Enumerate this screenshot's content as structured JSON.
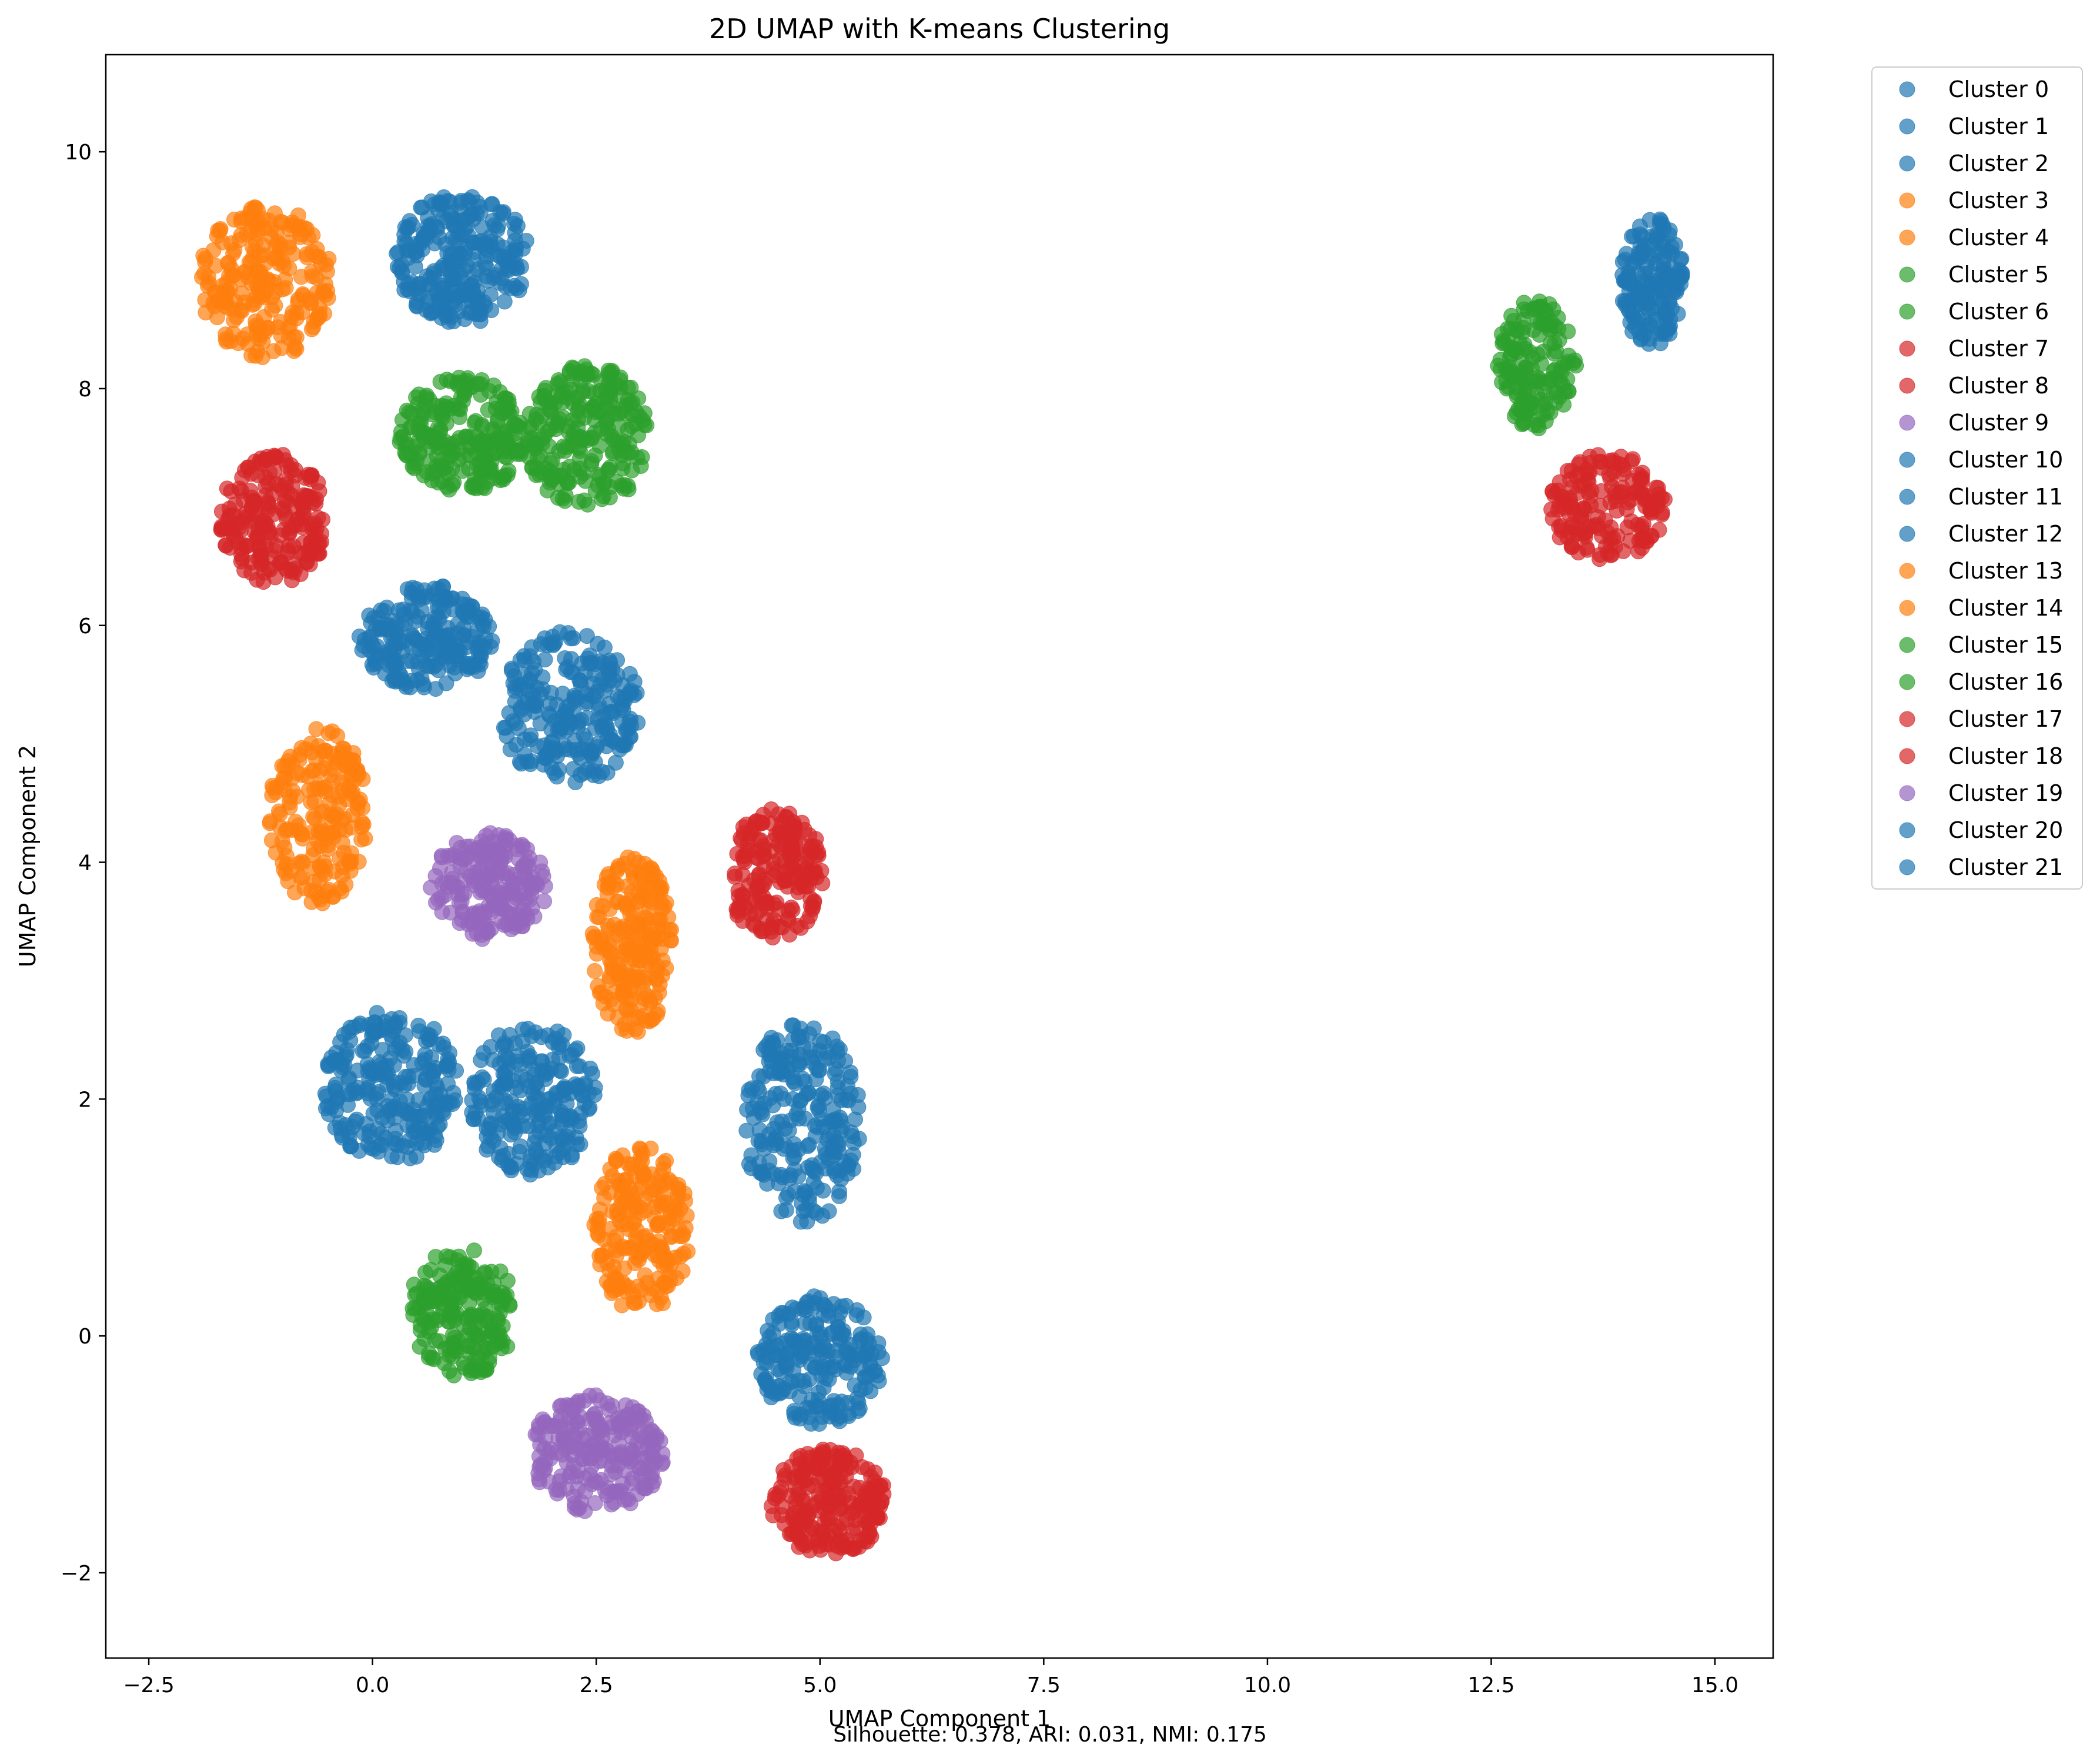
{
  "chart_data": {
    "type": "scatter",
    "title": "2D UMAP with K-means Clustering",
    "xlabel": "UMAP Component 1",
    "ylabel": "UMAP Component 2",
    "footer": "Silhouette: 0.378, ARI: 0.031, NMI: 0.175",
    "xlim": [
      -2.98,
      15.65
    ],
    "ylim": [
      -2.72,
      10.82
    ],
    "xticks": [
      -2.5,
      0.0,
      2.5,
      5.0,
      7.5,
      10.0,
      12.5,
      15.0
    ],
    "xtick_labels": [
      "−2.5",
      "0.0",
      "2.5",
      "5.0",
      "7.5",
      "10.0",
      "12.5",
      "15.0"
    ],
    "yticks": [
      -2,
      0,
      2,
      4,
      6,
      8,
      10
    ],
    "ytick_labels": [
      "−2",
      "0",
      "2",
      "4",
      "6",
      "8",
      "10"
    ],
    "grid": false,
    "legend_position": "outside-upper-right",
    "point_alpha": 0.7,
    "colors": {
      "blue": "#1f77b4",
      "orange": "#ff7f0e",
      "green": "#2ca02c",
      "red": "#d62728",
      "purple": "#9467bd"
    },
    "series": [
      {
        "name": "Cluster 0",
        "color": "#1f77b4",
        "center": [
          1.0,
          9.1
        ],
        "spread": [
          0.75,
          0.55
        ],
        "n": 260
      },
      {
        "name": "Cluster 1",
        "color": "#1f77b4",
        "center": [
          0.6,
          5.9
        ],
        "spread": [
          0.75,
          0.45
        ],
        "n": 220
      },
      {
        "name": "Cluster 2",
        "color": "#1f77b4",
        "center": [
          2.2,
          5.3
        ],
        "spread": [
          0.8,
          0.65
        ],
        "n": 240
      },
      {
        "name": "Cluster 3",
        "color": "#ff7f0e",
        "center": [
          -1.2,
          8.9
        ],
        "spread": [
          0.75,
          0.65
        ],
        "n": 230
      },
      {
        "name": "Cluster 4",
        "color": "#ff7f0e",
        "center": [
          -0.6,
          4.4
        ],
        "spread": [
          0.55,
          0.75
        ],
        "n": 200
      },
      {
        "name": "Cluster 5",
        "color": "#2ca02c",
        "center": [
          1.0,
          7.6
        ],
        "spread": [
          0.7,
          0.5
        ],
        "n": 230
      },
      {
        "name": "Cluster 6",
        "color": "#2ca02c",
        "center": [
          2.4,
          7.6
        ],
        "spread": [
          0.7,
          0.6
        ],
        "n": 240
      },
      {
        "name": "Cluster 7",
        "color": "#d62728",
        "center": [
          -1.1,
          6.9
        ],
        "spread": [
          0.6,
          0.55
        ],
        "n": 210
      },
      {
        "name": "Cluster 8",
        "color": "#d62728",
        "center": [
          4.5,
          3.9
        ],
        "spread": [
          0.55,
          0.55
        ],
        "n": 190
      },
      {
        "name": "Cluster 9",
        "color": "#9467bd",
        "center": [
          1.3,
          3.8
        ],
        "spread": [
          0.65,
          0.45
        ],
        "n": 200
      },
      {
        "name": "Cluster 10",
        "color": "#1f77b4",
        "center": [
          0.2,
          2.1
        ],
        "spread": [
          0.75,
          0.65
        ],
        "n": 250
      },
      {
        "name": "Cluster 11",
        "color": "#1f77b4",
        "center": [
          1.8,
          2.0
        ],
        "spread": [
          0.7,
          0.65
        ],
        "n": 230
      },
      {
        "name": "Cluster 12",
        "color": "#1f77b4",
        "center": [
          4.8,
          1.8
        ],
        "spread": [
          0.65,
          0.85
        ],
        "n": 240
      },
      {
        "name": "Cluster 13",
        "color": "#ff7f0e",
        "center": [
          2.9,
          3.3
        ],
        "spread": [
          0.45,
          0.75
        ],
        "n": 220
      },
      {
        "name": "Cluster 14",
        "color": "#ff7f0e",
        "center": [
          3.0,
          0.9
        ],
        "spread": [
          0.55,
          0.7
        ],
        "n": 210
      },
      {
        "name": "Cluster 15",
        "color": "#2ca02c",
        "center": [
          1.0,
          0.2
        ],
        "spread": [
          0.6,
          0.55
        ],
        "n": 200
      },
      {
        "name": "Cluster 16",
        "color": "#2ca02c",
        "center": [
          13.0,
          8.2
        ],
        "spread": [
          0.45,
          0.55
        ],
        "n": 150
      },
      {
        "name": "Cluster 17",
        "color": "#d62728",
        "center": [
          5.1,
          -1.4
        ],
        "spread": [
          0.65,
          0.45
        ],
        "n": 220
      },
      {
        "name": "Cluster 18",
        "color": "#d62728",
        "center": [
          13.8,
          7.0
        ],
        "spread": [
          0.65,
          0.45
        ],
        "n": 170
      },
      {
        "name": "Cluster 19",
        "color": "#9467bd",
        "center": [
          2.5,
          -1.0
        ],
        "spread": [
          0.75,
          0.5
        ],
        "n": 230
      },
      {
        "name": "Cluster 20",
        "color": "#1f77b4",
        "center": [
          5.0,
          -0.2
        ],
        "spread": [
          0.7,
          0.55
        ],
        "n": 210
      },
      {
        "name": "Cluster 21",
        "color": "#1f77b4",
        "center": [
          14.3,
          8.9
        ],
        "spread": [
          0.35,
          0.55
        ],
        "n": 160
      }
    ]
  }
}
